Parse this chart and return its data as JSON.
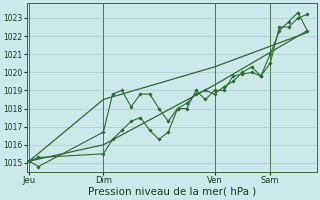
{
  "background_color": "#cce8ea",
  "plot_bg_color": "#cce8ea",
  "grid_color": "#aacccc",
  "line_color": "#2d6a2d",
  "marker_color": "#2d6a2d",
  "xlabel": "Pression niveau de la mer( hPa )",
  "xlabel_fontsize": 7.5,
  "ylim": [
    1014.5,
    1023.8
  ],
  "yticks": [
    1015,
    1016,
    1017,
    1018,
    1019,
    1020,
    1021,
    1022,
    1023
  ],
  "xtick_labels": [
    "Jeu",
    "Dim",
    "Ven",
    "Sam"
  ],
  "xtick_positions": [
    0,
    16,
    40,
    52
  ],
  "vline_positions": [
    0,
    16,
    40,
    52
  ],
  "series1_x": [
    0,
    2,
    16,
    18,
    20,
    22,
    24,
    26,
    28,
    30,
    32,
    34,
    36,
    38,
    40,
    42,
    44,
    46,
    48,
    50,
    52,
    54,
    56,
    58,
    60
  ],
  "series1_y": [
    1015.1,
    1014.8,
    1016.7,
    1018.8,
    1019.0,
    1018.1,
    1018.8,
    1018.8,
    1018.0,
    1017.3,
    1018.0,
    1018.0,
    1019.0,
    1018.5,
    1019.0,
    1019.0,
    1019.8,
    1019.9,
    1020.0,
    1019.8,
    1020.5,
    1022.5,
    1022.5,
    1023.0,
    1023.2
  ],
  "series2_x": [
    0,
    2,
    16,
    18,
    20,
    22,
    24,
    26,
    28,
    30,
    32,
    34,
    36,
    38,
    40,
    42,
    44,
    46,
    48,
    50,
    52,
    54,
    56,
    58,
    60
  ],
  "series2_y": [
    1015.1,
    1015.3,
    1015.5,
    1016.3,
    1016.8,
    1017.3,
    1017.5,
    1016.8,
    1016.3,
    1016.7,
    1018.0,
    1018.3,
    1018.8,
    1019.0,
    1018.8,
    1019.2,
    1019.5,
    1020.0,
    1020.3,
    1019.8,
    1021.0,
    1022.3,
    1022.8,
    1023.3,
    1022.3
  ],
  "series3_x": [
    0,
    16,
    40,
    60
  ],
  "series3_y": [
    1015.1,
    1016.0,
    1019.3,
    1022.3
  ],
  "series4_x": [
    0,
    16,
    40,
    60
  ],
  "series4_y": [
    1015.1,
    1018.5,
    1020.3,
    1022.2
  ],
  "xlim": [
    -0.5,
    62
  ]
}
